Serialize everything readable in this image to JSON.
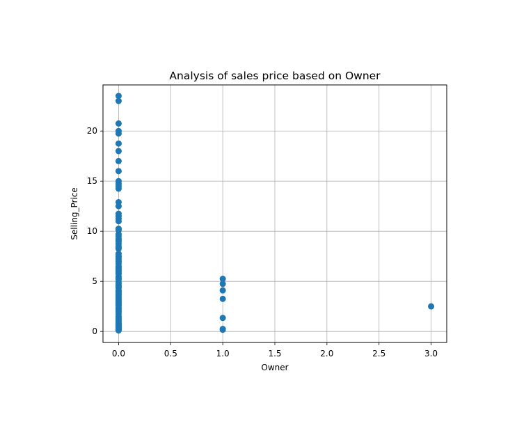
{
  "chart_data": {
    "type": "scatter",
    "title": "Analysis of sales price based on Owner",
    "xlabel": "Owner",
    "ylabel": "Selling_Price",
    "xlim": [
      -0.15,
      3.15
    ],
    "ylim": [
      -1.1,
      24.6
    ],
    "xticks": [
      "0.0",
      "0.5",
      "1.0",
      "1.5",
      "2.0",
      "2.5",
      "3.0"
    ],
    "yticks": [
      "0",
      "5",
      "10",
      "15",
      "20"
    ],
    "grid": true,
    "marker_color": "#1f77b4",
    "series": [
      {
        "points": [
          [
            0,
            23.5
          ],
          [
            0,
            23.0
          ],
          [
            0,
            20.75
          ],
          [
            0,
            20.0
          ],
          [
            0,
            19.75
          ],
          [
            0,
            18.75
          ],
          [
            0,
            18.0
          ],
          [
            0,
            17.0
          ],
          [
            0,
            16.0
          ],
          [
            0,
            15.0
          ],
          [
            0,
            14.73
          ],
          [
            0,
            14.5
          ],
          [
            0,
            14.25
          ],
          [
            0,
            12.9
          ],
          [
            0,
            12.5
          ],
          [
            0,
            11.75
          ],
          [
            0,
            11.5
          ],
          [
            0,
            11.25
          ],
          [
            0,
            11.0
          ],
          [
            0,
            10.25
          ],
          [
            0,
            10.11
          ],
          [
            0,
            9.7
          ],
          [
            0,
            9.5
          ],
          [
            0,
            9.25
          ],
          [
            0,
            9.1
          ],
          [
            0,
            8.99
          ],
          [
            0,
            8.75
          ],
          [
            0,
            8.5
          ],
          [
            0,
            8.35
          ],
          [
            0,
            8.25
          ],
          [
            0,
            7.75
          ],
          [
            0,
            7.5
          ],
          [
            0,
            7.45
          ],
          [
            0,
            7.25
          ],
          [
            0,
            7.05
          ],
          [
            0,
            6.95
          ],
          [
            0,
            6.75
          ],
          [
            0,
            6.5
          ],
          [
            0,
            6.4
          ],
          [
            0,
            6.25
          ],
          [
            0,
            6.1
          ],
          [
            0,
            6.0
          ],
          [
            0,
            5.85
          ],
          [
            0,
            5.75
          ],
          [
            0,
            5.5
          ],
          [
            0,
            5.4
          ],
          [
            0,
            5.25
          ],
          [
            0,
            5.2
          ],
          [
            0,
            4.95
          ],
          [
            0,
            4.75
          ],
          [
            0,
            4.6
          ],
          [
            0,
            4.5
          ],
          [
            0,
            4.4
          ],
          [
            0,
            4.35
          ],
          [
            0,
            4.1
          ],
          [
            0,
            4.0
          ],
          [
            0,
            3.95
          ],
          [
            0,
            3.8
          ],
          [
            0,
            3.65
          ],
          [
            0,
            3.5
          ],
          [
            0,
            3.35
          ],
          [
            0,
            3.25
          ],
          [
            0,
            3.1
          ],
          [
            0,
            3.0
          ],
          [
            0,
            2.9
          ],
          [
            0,
            2.75
          ],
          [
            0,
            2.65
          ],
          [
            0,
            2.55
          ],
          [
            0,
            2.35
          ],
          [
            0,
            2.25
          ],
          [
            0,
            2.1
          ],
          [
            0,
            1.95
          ],
          [
            0,
            1.75
          ],
          [
            0,
            1.5
          ],
          [
            0,
            1.35
          ],
          [
            0,
            1.2
          ],
          [
            0,
            1.05
          ],
          [
            0,
            0.95
          ],
          [
            0,
            0.8
          ],
          [
            0,
            0.72
          ],
          [
            0,
            0.65
          ],
          [
            0,
            0.6
          ],
          [
            0,
            0.5
          ],
          [
            0,
            0.45
          ],
          [
            0,
            0.4
          ],
          [
            0,
            0.35
          ],
          [
            0,
            0.3
          ],
          [
            0,
            0.25
          ],
          [
            0,
            0.2
          ],
          [
            0,
            0.15
          ],
          [
            0,
            0.1
          ],
          [
            1,
            5.25
          ],
          [
            1,
            4.75
          ],
          [
            1,
            4.1
          ],
          [
            1,
            3.25
          ],
          [
            1,
            1.35
          ],
          [
            1,
            0.25
          ],
          [
            1,
            0.17
          ],
          [
            3,
            2.5
          ]
        ]
      }
    ]
  }
}
